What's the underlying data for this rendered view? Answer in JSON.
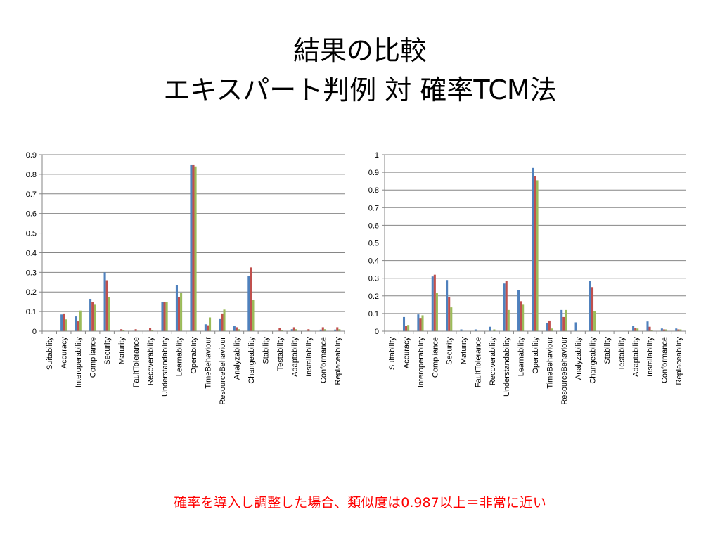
{
  "slide": {
    "title_line1": "結果の比較",
    "title_line2": "エキスパート判例 対 確率TCM法",
    "footnote": "確率を導入し調整した場合、類似度は0.987以上＝非常に近い"
  },
  "colors": {
    "series": [
      "#4f81bd",
      "#c0504d",
      "#9bbb59"
    ],
    "grid": "#868686",
    "text": "#000000"
  },
  "chart_data": [
    {
      "type": "bar",
      "categories": [
        "Suitability",
        "Accuracy",
        "Interoperability",
        "Compliance",
        "Security",
        "Maturity",
        "FaultTolerance",
        "Recoverability",
        "Understandability",
        "Learnability",
        "Operability",
        "TimeBehaviour",
        "ResourceBehaviour",
        "Analyzability",
        "Changeability",
        "Stability",
        "Testability",
        "Adaptability",
        "Installability",
        "Conformance",
        "Replaceability"
      ],
      "ylim": [
        0,
        0.9
      ],
      "yticks": [
        "0",
        "0.1",
        "0.2",
        "0.3",
        "0.4",
        "0.5",
        "0.6",
        "0.7",
        "0.8",
        "0.9"
      ],
      "grid": true,
      "series": [
        {
          "values": [
            0,
            0.085,
            0.075,
            0.165,
            0.3,
            0.002,
            0.002,
            0.002,
            0.15,
            0.235,
            0.85,
            0.035,
            0.065,
            0.025,
            0.28,
            0.002,
            0.002,
            0.01,
            0.002,
            0.008,
            0.008
          ]
        },
        {
          "values": [
            0,
            0.09,
            0.05,
            0.15,
            0.26,
            0.01,
            0.01,
            0.015,
            0.15,
            0.175,
            0.85,
            0.03,
            0.09,
            0.02,
            0.325,
            0.002,
            0.015,
            0.02,
            0.01,
            0.02,
            0.02
          ]
        },
        {
          "values": [
            0,
            0.06,
            0.105,
            0.135,
            0.175,
            0.005,
            0.002,
            0.005,
            0.15,
            0.195,
            0.84,
            0.07,
            0.11,
            0.01,
            0.16,
            0.002,
            0.005,
            0.01,
            0.002,
            0.01,
            0.01
          ]
        }
      ]
    },
    {
      "type": "bar",
      "categories": [
        "Suitability",
        "Accuracy",
        "Interoperability",
        "Compliance",
        "Security",
        "Maturity",
        "FaultTolerance",
        "Recoverability",
        "Understandability",
        "Learnability",
        "Operability",
        "TimeBehaviour",
        "ResourceBehaviour",
        "Analyzability",
        "Changeability",
        "Stability",
        "Testability",
        "Adaptability",
        "Installability",
        "Conformance",
        "Replaceability"
      ],
      "ylim": [
        0,
        1
      ],
      "yticks": [
        "0",
        "0.1",
        "0.2",
        "0.3",
        "0.4",
        "0.5",
        "0.6",
        "0.7",
        "0.8",
        "0.9",
        "1"
      ],
      "grid": true,
      "series": [
        {
          "values": [
            0,
            0.08,
            0.095,
            0.31,
            0.29,
            0.01,
            0.01,
            0.025,
            0.27,
            0.235,
            0.925,
            0.045,
            0.12,
            0.05,
            0.285,
            0.002,
            0.002,
            0.03,
            0.055,
            0.015,
            0.015
          ]
        },
        {
          "values": [
            0,
            0.03,
            0.075,
            0.32,
            0.195,
            0.002,
            0.002,
            0.002,
            0.285,
            0.17,
            0.88,
            0.06,
            0.08,
            0.002,
            0.25,
            0.002,
            0.002,
            0.02,
            0.025,
            0.01,
            0.01
          ]
        },
        {
          "values": [
            0,
            0.035,
            0.09,
            0.215,
            0.135,
            0.002,
            0.002,
            0.01,
            0.12,
            0.15,
            0.855,
            0.015,
            0.12,
            0.002,
            0.115,
            0.002,
            0.002,
            0.015,
            0.005,
            0.01,
            0.01
          ]
        }
      ]
    }
  ]
}
